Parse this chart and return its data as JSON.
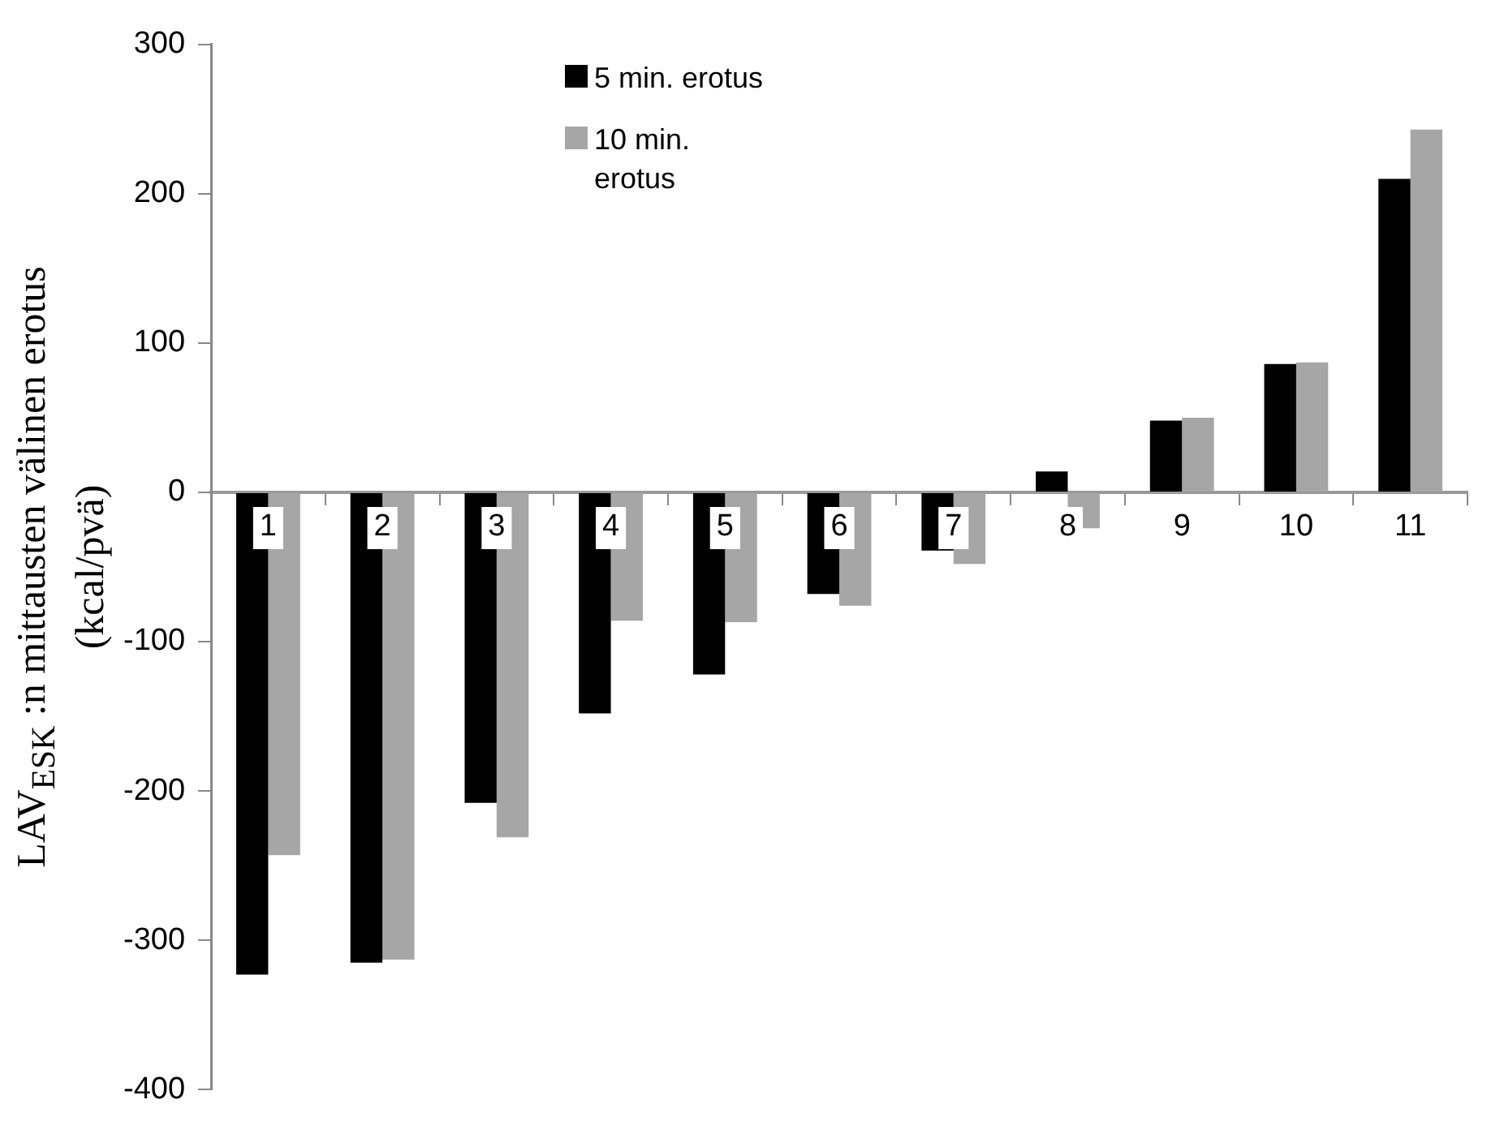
{
  "chart_data": {
    "type": "bar",
    "ylabel": "LAV$_{ESK}$ :n mittausten välinen erotus (kcal/pvä)",
    "categories": [
      "1",
      "2",
      "3",
      "4",
      "5",
      "6",
      "7",
      "8",
      "9",
      "10",
      "11"
    ],
    "series": [
      {
        "name": "5 min. erotus",
        "color": "#000000",
        "values": [
          -323,
          -315,
          -208,
          -148,
          -122,
          -68,
          -39,
          14,
          48,
          86,
          210
        ]
      },
      {
        "name": "10 min. erotus",
        "color": "#a6a6a6",
        "values": [
          -243,
          -313,
          -231,
          -86,
          -87,
          -76,
          -48,
          -24,
          50,
          87,
          243
        ]
      }
    ],
    "ylim": [
      -400,
      300
    ],
    "yticks": [
      -400,
      -300,
      -200,
      -100,
      0,
      100,
      200,
      300
    ],
    "grid": false,
    "legend": "top"
  }
}
